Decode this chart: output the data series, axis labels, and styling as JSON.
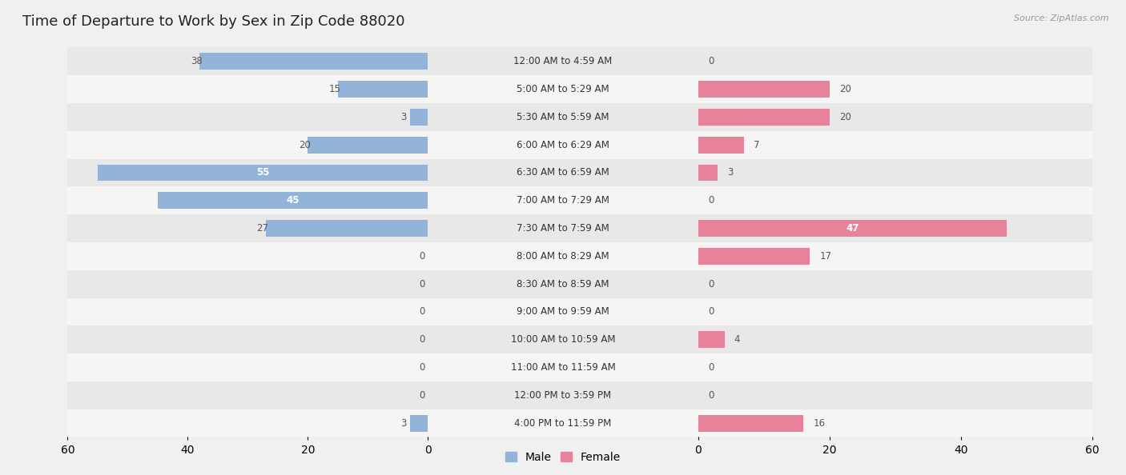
{
  "title": "Time of Departure to Work by Sex in Zip Code 88020",
  "source": "Source: ZipAtlas.com",
  "categories": [
    "12:00 AM to 4:59 AM",
    "5:00 AM to 5:29 AM",
    "5:30 AM to 5:59 AM",
    "6:00 AM to 6:29 AM",
    "6:30 AM to 6:59 AM",
    "7:00 AM to 7:29 AM",
    "7:30 AM to 7:59 AM",
    "8:00 AM to 8:29 AM",
    "8:30 AM to 8:59 AM",
    "9:00 AM to 9:59 AM",
    "10:00 AM to 10:59 AM",
    "11:00 AM to 11:59 AM",
    "12:00 PM to 3:59 PM",
    "4:00 PM to 11:59 PM"
  ],
  "male_values": [
    38,
    15,
    3,
    20,
    55,
    45,
    27,
    0,
    0,
    0,
    0,
    0,
    0,
    3
  ],
  "female_values": [
    0,
    20,
    20,
    7,
    3,
    0,
    47,
    17,
    0,
    0,
    4,
    0,
    0,
    16
  ],
  "male_color": "#92b4d8",
  "female_color": "#e8819a",
  "max_val": 60,
  "background_color": "#f0f0f0",
  "row_odd_color": "#e8e8e8",
  "row_even_color": "#f5f5f5",
  "title_fontsize": 13,
  "tick_fontsize": 10,
  "label_fontsize": 8.5,
  "cat_fontsize": 8.5,
  "legend_fontsize": 10,
  "bar_height": 0.6
}
